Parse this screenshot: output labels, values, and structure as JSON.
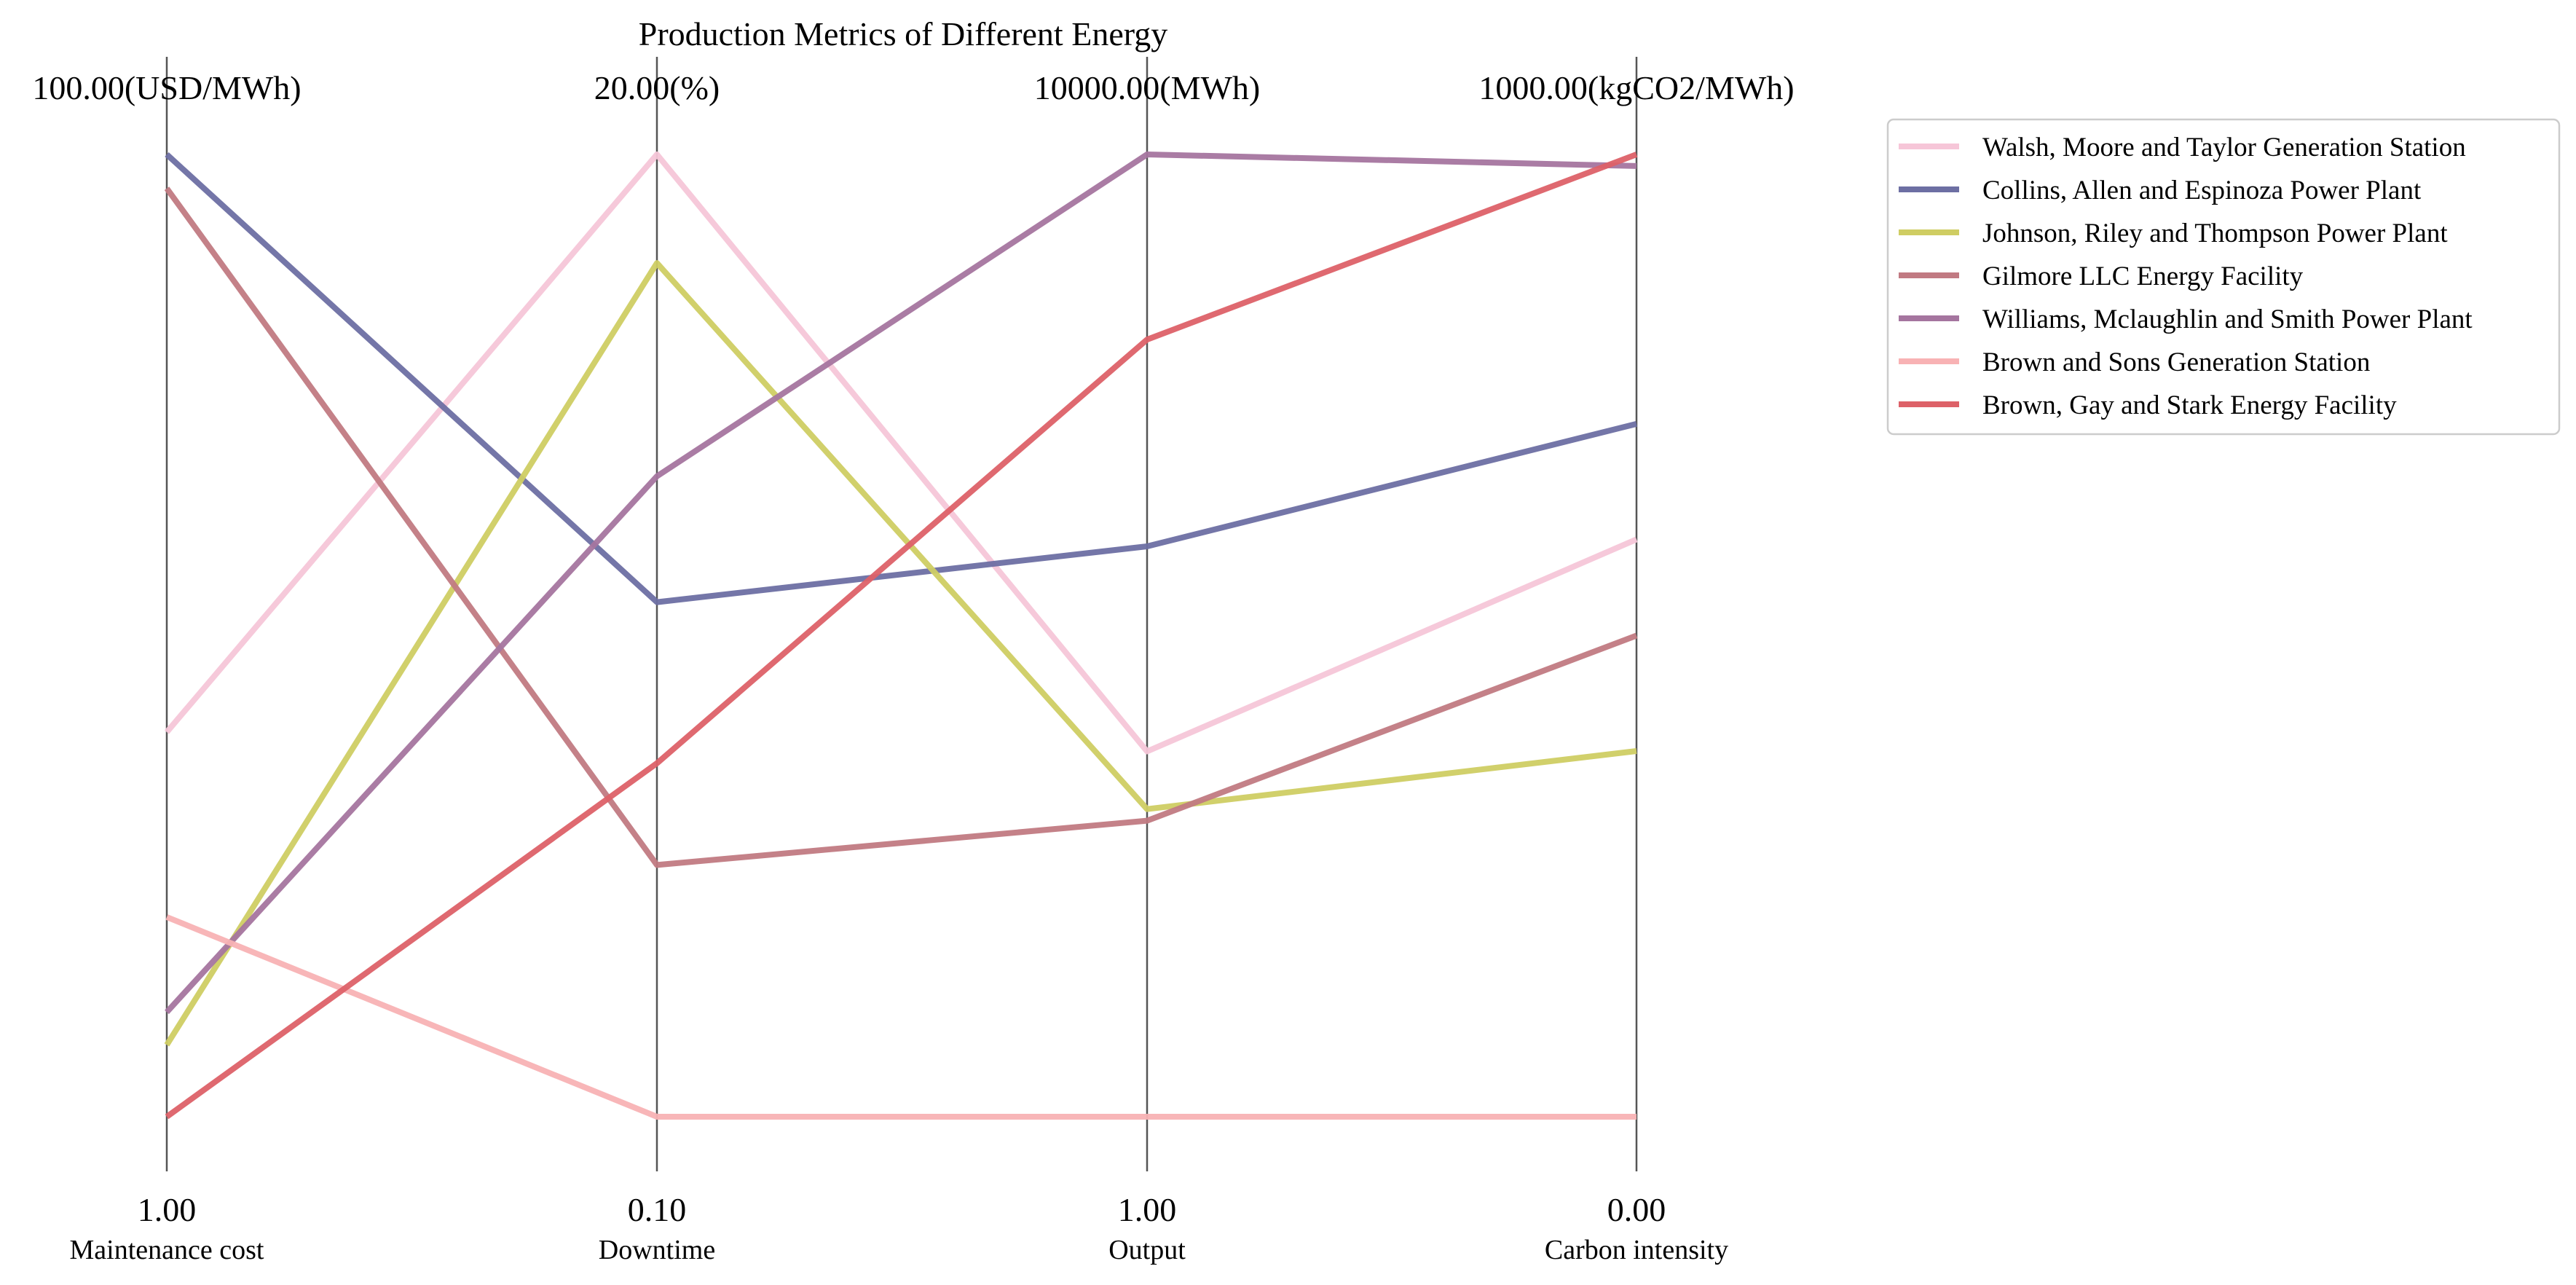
{
  "chart_data": {
    "type": "parallel-coordinates",
    "title": "Production Metrics of Different Energy",
    "axes": [
      {
        "name": "Maintenance cost",
        "top_label": "100.00(USD/MWh)",
        "bottom_label": "1.00",
        "min": 1,
        "max": 100,
        "scale": "log"
      },
      {
        "name": "Downtime",
        "top_label": "20.00(%)",
        "bottom_label": "0.10",
        "min": 0.1,
        "max": 20,
        "scale": "log"
      },
      {
        "name": "Output",
        "top_label": "10000.00(MWh)",
        "bottom_label": "1.00",
        "min": 1,
        "max": 10000,
        "scale": "log"
      },
      {
        "name": "Carbon intensity",
        "top_label": "1000.00(kgCO2/MWh)",
        "bottom_label": "0.00",
        "min": 0,
        "max": 1000,
        "scale": "linear"
      }
    ],
    "series": [
      {
        "name": "Walsh, Moore and Taylor  Generation Station",
        "color": "#f6c6d8",
        "values": [
          6.3,
          20,
          33,
          600
        ]
      },
      {
        "name": "Collins, Allen and Espinoza  Power Plant",
        "color": "#6d6fa3",
        "values": [
          100,
          1.7,
          235,
          720
        ]
      },
      {
        "name": "Johnson, Riley and Thompson  Power Plant",
        "color": "#cfcd63",
        "values": [
          1.41,
          11,
          19,
          380
        ]
      },
      {
        "name": "Gilmore LLC  Energy Facility",
        "color": "#c17a82",
        "values": [
          85,
          0.4,
          17,
          500
        ]
      },
      {
        "name": "Williams, Mclaughlin and Smith  Power Plant",
        "color": "#a5759f",
        "values": [
          1.65,
          3.4,
          10000,
          988
        ]
      },
      {
        "name": "Brown and Sons  Generation Station",
        "color": "#f8b2b4",
        "values": [
          2.6,
          0.1,
          1,
          0
        ]
      },
      {
        "name": "Brown, Gay and Stark  Energy Facility",
        "color": "#dd6168",
        "values": [
          1.0,
          0.7,
          1700,
          1000
        ]
      }
    ],
    "legend_position": "top-right",
    "grid": false
  }
}
